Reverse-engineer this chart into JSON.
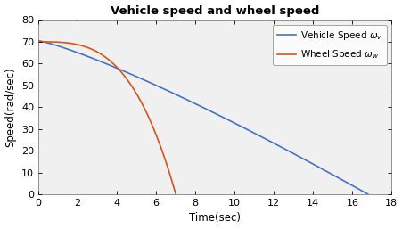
{
  "title": "Vehicle speed and wheel speed",
  "xlabel": "Time(sec)",
  "ylabel": "Speed(rad/sec)",
  "xlim": [
    0,
    18
  ],
  "ylim": [
    0,
    80
  ],
  "xticks": [
    0,
    2,
    4,
    6,
    8,
    10,
    12,
    14,
    16,
    18
  ],
  "yticks": [
    0,
    10,
    20,
    30,
    40,
    50,
    60,
    70,
    80
  ],
  "vehicle_color": "#4472C4",
  "wheel_color": "#D95319",
  "vehicle_label": "Vehicle Speed $\\omega_v$",
  "wheel_label": "Wheel Speed $\\omega_w$",
  "vehicle_initial": 70.5,
  "wheel_initial": 70.0,
  "vehicle_end_time": 16.8,
  "wheel_end_time": 7.0,
  "background_color": "#ffffff",
  "axes_background": "#f0f0f0",
  "title_fontsize": 9.5,
  "axis_fontsize": 8.5,
  "tick_fontsize": 8,
  "legend_fontsize": 7.5,
  "linewidth": 1.2
}
